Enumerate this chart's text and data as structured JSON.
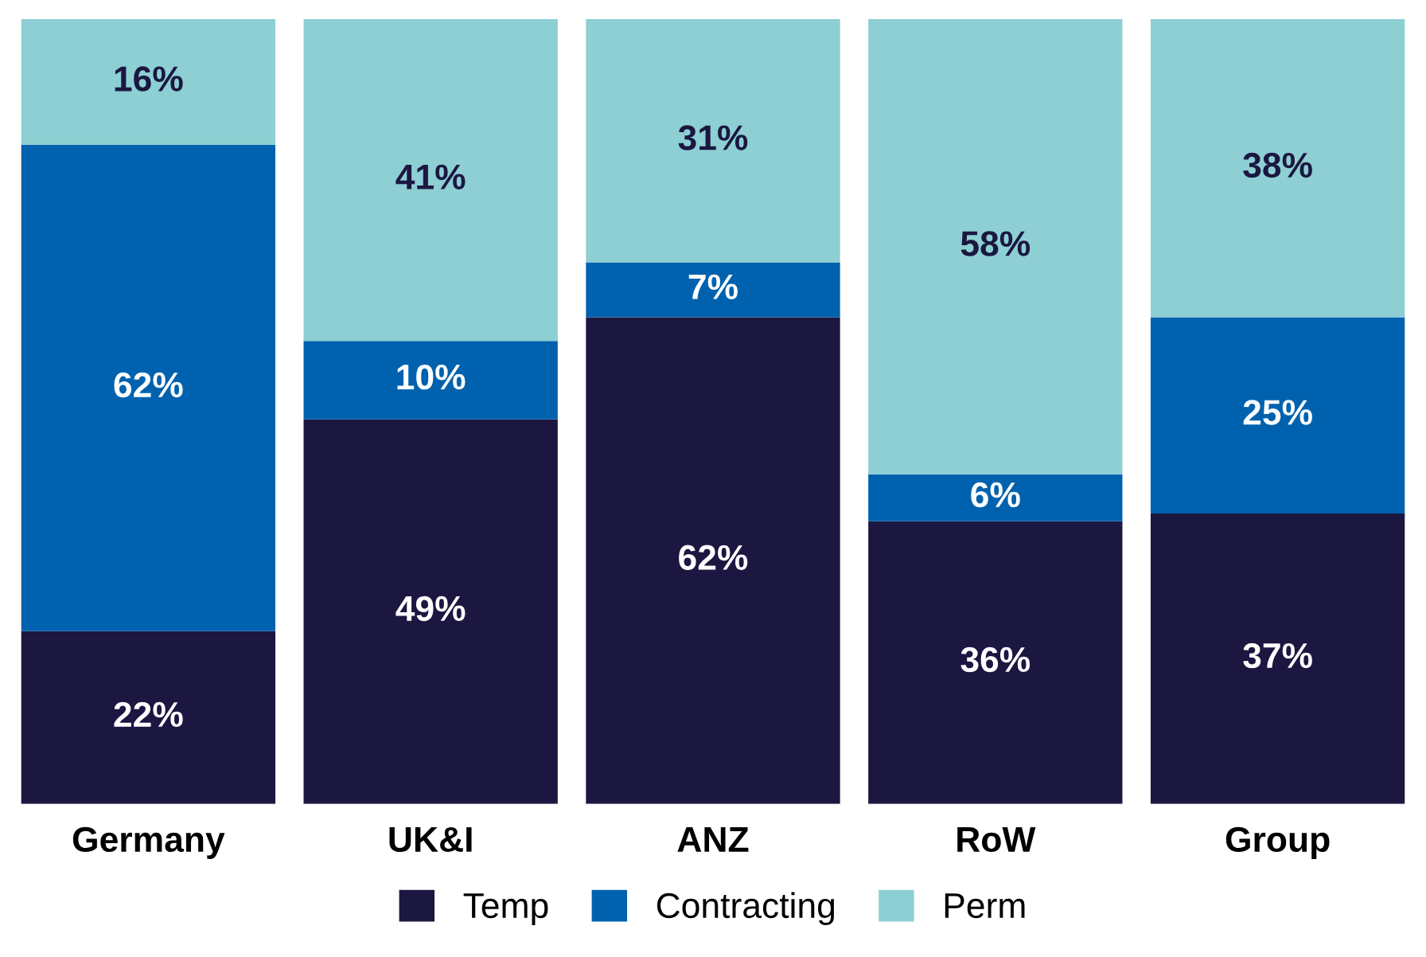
{
  "chart_data": {
    "type": "bar",
    "stacked": true,
    "categories": [
      "Germany",
      "UK&I",
      "ANZ",
      "RoW",
      "Group"
    ],
    "series": [
      {
        "name": "Temp",
        "color": "#1b1741",
        "values": [
          22,
          49,
          62,
          36,
          37
        ],
        "value_labels": [
          "22%",
          "49%",
          "62%",
          "36%",
          "37%"
        ]
      },
      {
        "name": "Contracting",
        "color": "#0062ae",
        "values": [
          62,
          10,
          7,
          6,
          25
        ],
        "value_labels": [
          "62%",
          "10%",
          "7%",
          "6%",
          "25%"
        ]
      },
      {
        "name": "Perm",
        "color": "#8dcfd3",
        "values": [
          16,
          41,
          31,
          58,
          38
        ],
        "value_labels": [
          "16%",
          "41%",
          "31%",
          "58%",
          "38%"
        ]
      }
    ],
    "legend": "bottom",
    "grid": false,
    "tick_labels": "x"
  }
}
